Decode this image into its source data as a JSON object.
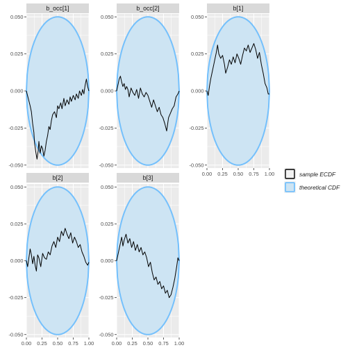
{
  "chart_data": {
    "type": "line",
    "facets": [
      {
        "label": "b_occ[1]",
        "series": [
          {
            "name": "sample ECDF",
            "x": [
              0,
              0.03,
              0.06,
              0.08,
              0.1,
              0.12,
              0.13,
              0.15,
              0.17,
              0.19,
              0.2,
              0.22,
              0.24,
              0.26,
              0.28,
              0.3,
              0.32,
              0.34,
              0.36,
              0.38,
              0.4,
              0.42,
              0.45,
              0.48,
              0.5,
              0.52,
              0.55,
              0.57,
              0.6,
              0.62,
              0.65,
              0.68,
              0.7,
              0.72,
              0.75,
              0.78,
              0.8,
              0.83,
              0.85,
              0.88,
              0.9,
              0.92,
              0.94,
              0.96,
              0.98,
              1.0
            ],
            "y": [
              0.0,
              -0.005,
              -0.01,
              -0.014,
              -0.022,
              -0.028,
              -0.035,
              -0.041,
              -0.046,
              -0.04,
              -0.034,
              -0.042,
              -0.037,
              -0.039,
              -0.044,
              -0.04,
              -0.034,
              -0.03,
              -0.024,
              -0.026,
              -0.02,
              -0.016,
              -0.014,
              -0.018,
              -0.01,
              -0.012,
              -0.008,
              -0.012,
              -0.005,
              -0.01,
              -0.006,
              -0.009,
              -0.004,
              -0.007,
              -0.003,
              -0.006,
              -0.002,
              -0.005,
              0.0,
              -0.003,
              0.001,
              -0.002,
              0.004,
              0.008,
              0.003,
              0.0
            ]
          },
          {
            "name": "theoretical CDF",
            "band_halfwidth": 0.05
          }
        ]
      },
      {
        "label": "b_occ[2]",
        "series": [
          {
            "name": "sample ECDF",
            "x": [
              0,
              0.02,
              0.04,
              0.06,
              0.08,
              0.1,
              0.12,
              0.14,
              0.16,
              0.18,
              0.2,
              0.23,
              0.26,
              0.29,
              0.32,
              0.35,
              0.38,
              0.41,
              0.44,
              0.47,
              0.5,
              0.53,
              0.56,
              0.59,
              0.62,
              0.65,
              0.68,
              0.71,
              0.74,
              0.77,
              0.8,
              0.83,
              0.86,
              0.89,
              0.92,
              0.95,
              0.98,
              1.0
            ],
            "y": [
              0.0,
              0.004,
              0.008,
              0.01,
              0.006,
              0.003,
              0.005,
              0.001,
              0.003,
              0.001,
              -0.004,
              0.002,
              -0.001,
              -0.003,
              0.001,
              -0.005,
              0.002,
              -0.002,
              -0.004,
              -0.001,
              -0.003,
              -0.007,
              -0.011,
              -0.006,
              -0.01,
              -0.014,
              -0.011,
              -0.016,
              -0.018,
              -0.022,
              -0.027,
              -0.018,
              -0.015,
              -0.012,
              -0.01,
              -0.004,
              -0.002,
              0.0
            ]
          },
          {
            "name": "theoretical CDF",
            "band_halfwidth": 0.05
          }
        ]
      },
      {
        "label": "b[1]",
        "series": [
          {
            "name": "sample ECDF",
            "x": [
              0,
              0.02,
              0.04,
              0.06,
              0.08,
              0.1,
              0.12,
              0.15,
              0.17,
              0.19,
              0.22,
              0.25,
              0.28,
              0.3,
              0.33,
              0.36,
              0.39,
              0.42,
              0.45,
              0.48,
              0.51,
              0.54,
              0.57,
              0.6,
              0.63,
              0.66,
              0.69,
              0.72,
              0.75,
              0.78,
              0.81,
              0.84,
              0.87,
              0.9,
              0.93,
              0.96,
              0.98,
              1.0
            ],
            "y": [
              0.0,
              -0.003,
              0.003,
              0.008,
              0.012,
              0.016,
              0.02,
              0.026,
              0.031,
              0.025,
              0.022,
              0.024,
              0.018,
              0.012,
              0.016,
              0.021,
              0.018,
              0.023,
              0.019,
              0.025,
              0.022,
              0.018,
              0.024,
              0.029,
              0.027,
              0.031,
              0.026,
              0.029,
              0.032,
              0.028,
              0.022,
              0.026,
              0.018,
              0.012,
              0.005,
              0.002,
              -0.002,
              -0.002
            ]
          },
          {
            "name": "theoretical CDF",
            "band_halfwidth": 0.05
          }
        ]
      },
      {
        "label": "b[2]",
        "series": [
          {
            "name": "sample ECDF",
            "x": [
              0,
              0.02,
              0.04,
              0.06,
              0.08,
              0.1,
              0.12,
              0.14,
              0.16,
              0.18,
              0.2,
              0.23,
              0.26,
              0.29,
              0.32,
              0.35,
              0.38,
              0.41,
              0.44,
              0.47,
              0.5,
              0.53,
              0.56,
              0.59,
              0.62,
              0.65,
              0.68,
              0.71,
              0.74,
              0.77,
              0.8,
              0.83,
              0.86,
              0.89,
              0.92,
              0.95,
              0.98,
              1.0
            ],
            "y": [
              0.0,
              -0.004,
              0.002,
              0.008,
              0.004,
              -0.002,
              0.003,
              -0.003,
              -0.007,
              0.004,
              0.002,
              -0.004,
              0.005,
              0.002,
              0.001,
              0.006,
              0.004,
              0.01,
              0.013,
              0.009,
              0.016,
              0.013,
              0.02,
              0.017,
              0.022,
              0.018,
              0.015,
              0.019,
              0.012,
              0.016,
              0.013,
              0.009,
              0.011,
              0.006,
              0.003,
              -0.001,
              -0.003,
              -0.001
            ]
          },
          {
            "name": "theoretical CDF",
            "band_halfwidth": 0.05
          }
        ]
      },
      {
        "label": "b[3]",
        "series": [
          {
            "name": "sample ECDF",
            "x": [
              0,
              0.02,
              0.04,
              0.06,
              0.08,
              0.1,
              0.12,
              0.15,
              0.18,
              0.21,
              0.24,
              0.27,
              0.3,
              0.33,
              0.36,
              0.39,
              0.42,
              0.45,
              0.48,
              0.51,
              0.54,
              0.57,
              0.6,
              0.63,
              0.66,
              0.69,
              0.72,
              0.75,
              0.78,
              0.81,
              0.84,
              0.87,
              0.9,
              0.93,
              0.96,
              0.98,
              1.0
            ],
            "y": [
              0.0,
              0.004,
              0.008,
              0.012,
              0.016,
              0.01,
              0.014,
              0.018,
              0.012,
              0.015,
              0.009,
              0.013,
              0.007,
              0.011,
              0.006,
              0.009,
              0.004,
              0.006,
              0.002,
              -0.004,
              -0.001,
              -0.008,
              -0.013,
              -0.011,
              -0.016,
              -0.014,
              -0.019,
              -0.017,
              -0.022,
              -0.02,
              -0.025,
              -0.023,
              -0.018,
              -0.012,
              -0.004,
              0.002,
              0.0
            ]
          },
          {
            "name": "theoretical CDF",
            "band_halfwidth": 0.05
          }
        ]
      }
    ],
    "x_ticks": [
      "0.00",
      "0.25",
      "0.50",
      "0.75",
      "1.00"
    ],
    "y_ticks": [
      "-0.050",
      "-0.025",
      "0.000",
      "0.025",
      "0.050"
    ],
    "xlim": [
      0,
      1
    ],
    "ylim": [
      -0.052,
      0.052
    ],
    "grid": true,
    "legend": {
      "position": "right",
      "items": [
        {
          "label": "sample ECDF",
          "color": "#000000"
        },
        {
          "label": "theoretical CDF",
          "color": "#74c0fc"
        }
      ]
    },
    "colors": {
      "panel_background": "#ebebeb",
      "grid": "#ffffff",
      "strip_background": "#d9d9d9",
      "band_fill": "#cde4f3",
      "band_edge": "#74c0fc",
      "ecdf_line": "#000000"
    }
  }
}
